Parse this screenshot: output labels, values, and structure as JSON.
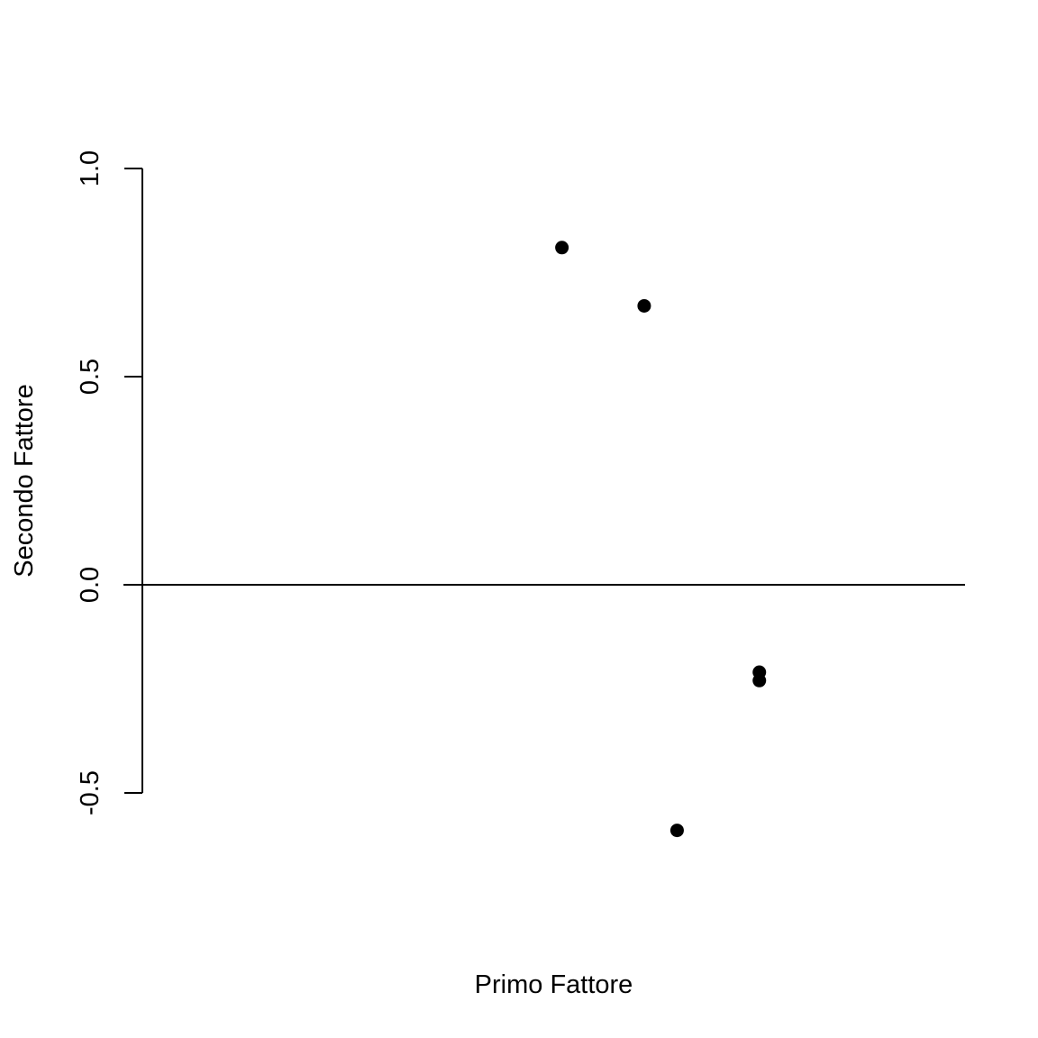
{
  "chart_data": {
    "type": "scatter",
    "xlabel": "Primo Fattore",
    "ylabel": "Secondo Fattore",
    "ylim": [
      -0.5,
      1.0
    ],
    "y_ticks": [
      {
        "value": -0.5,
        "label": "-0.5"
      },
      {
        "value": 0.0,
        "label": "0.0"
      },
      {
        "value": 0.5,
        "label": "0.5"
      },
      {
        "value": 1.0,
        "label": "1.0"
      }
    ],
    "reference_line_y": 0.0,
    "grid": false,
    "series": [
      {
        "points": [
          {
            "x": 0.51,
            "y": 0.81
          },
          {
            "x": 0.61,
            "y": 0.67
          },
          {
            "x": 0.65,
            "y": -0.59
          },
          {
            "x": 0.75,
            "y": -0.21
          },
          {
            "x": 0.75,
            "y": -0.23
          }
        ],
        "color": "#000000"
      }
    ]
  }
}
